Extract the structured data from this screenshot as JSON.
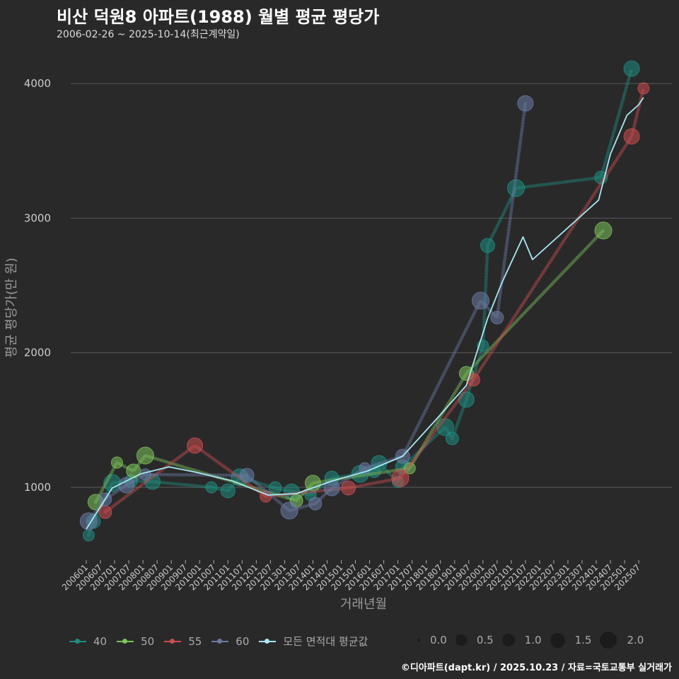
{
  "header": {
    "title": "비산 덕원8 아파트(1988) 월별 평균 평당가",
    "subtitle": "2006-02-26 ~ 2025-10-14(최근계약일)"
  },
  "caption": "©디아파트(dapt.kr) / 2025.10.23 / 자료=국토교통부 실거래가",
  "chart_data": {
    "type": "line",
    "title": "비산 덕원8 아파트(1988) 월별 평균 평당가",
    "xlabel": "거래년월",
    "ylabel": "평균 평당가(만 원)",
    "ylim": [
      450,
      4200
    ],
    "y_ticks": [
      1000,
      2000,
      3000,
      4000
    ],
    "x_ticks": [
      "200601",
      "200607",
      "200701",
      "200707",
      "200801",
      "200807",
      "200901",
      "200907",
      "201001",
      "201007",
      "201101",
      "201107",
      "201201",
      "201207",
      "201301",
      "201307",
      "201401",
      "201407",
      "201501",
      "201507",
      "201601",
      "201607",
      "201701",
      "201707",
      "201801",
      "201807",
      "201901",
      "201907",
      "202001",
      "202007",
      "202101",
      "202107",
      "202201",
      "202207",
      "202301",
      "202307",
      "202401",
      "202407",
      "202501",
      "202507"
    ],
    "grid": true,
    "legend_position": "bottom",
    "series": [
      {
        "name": "40",
        "color": "#1f8d80",
        "points": [
          [
            "2006-02",
            643
          ],
          [
            "2006-04",
            748
          ],
          [
            "2006-12",
            1032
          ],
          [
            "2007-08",
            1047
          ],
          [
            "2008-05",
            1042
          ],
          [
            "2010-06",
            1000
          ],
          [
            "2011-01",
            974
          ],
          [
            "2011-06",
            1074
          ],
          [
            "2012-09",
            995
          ],
          [
            "2013-04",
            968
          ],
          [
            "2013-12",
            942
          ],
          [
            "2014-09",
            1068
          ],
          [
            "2015-09",
            1100
          ],
          [
            "2016-03",
            1120
          ],
          [
            "2016-05",
            1179
          ],
          [
            "2017-01",
            1040
          ],
          [
            "2017-03",
            1152
          ],
          [
            "2018-09",
            1447
          ],
          [
            "2018-12",
            1363
          ],
          [
            "2019-06",
            1652
          ],
          [
            "2020-01",
            2051
          ],
          [
            "2020-03",
            2797
          ],
          [
            "2021-03",
            3223
          ],
          [
            "2024-03",
            3302
          ],
          [
            "2025-04",
            4111
          ]
        ]
      },
      {
        "name": "50",
        "color": "#7cc35a",
        "points": [
          [
            "2006-05",
            890
          ],
          [
            "2007-02",
            1184
          ],
          [
            "2007-09",
            1121
          ],
          [
            "2008-02",
            1236
          ],
          [
            "2013-06",
            900
          ],
          [
            "2014-01",
            1032
          ],
          [
            "2017-06",
            1142
          ],
          [
            "2019-06",
            1846
          ],
          [
            "2024-04",
            2908
          ]
        ]
      },
      {
        "name": "55",
        "color": "#cc4d4f",
        "points": [
          [
            "2006-09",
            816
          ],
          [
            "2009-11",
            1310
          ],
          [
            "2012-05",
            932
          ],
          [
            "2015-04",
            995
          ],
          [
            "2017-02",
            1068
          ],
          [
            "2019-09",
            1799
          ],
          [
            "2025-04",
            3607
          ],
          [
            "2025-09",
            3964
          ]
        ]
      },
      {
        "name": "60",
        "color": "#6a7ba3",
        "points": [
          [
            "2006-02",
            748
          ],
          [
            "2006-09",
            911
          ],
          [
            "2007-06",
            1016
          ],
          [
            "2008-02",
            1095
          ],
          [
            "2011-09",
            1089
          ],
          [
            "2013-03",
            827
          ],
          [
            "2014-02",
            879
          ],
          [
            "2014-09",
            995
          ],
          [
            "2015-11",
            1142
          ],
          [
            "2017-03",
            1231
          ],
          [
            "2019-12",
            2387
          ],
          [
            "2020-07",
            2261
          ],
          [
            "2021-07",
            3853
          ]
        ]
      },
      {
        "name": "모든 면적대 평균값",
        "color": "#a9e8f2",
        "smooth": true,
        "points": [
          [
            "2006-01",
            690
          ],
          [
            "2006-12",
            995
          ],
          [
            "2007-12",
            1100
          ],
          [
            "2008-12",
            1152
          ],
          [
            "2009-12",
            1110
          ],
          [
            "2011-03",
            1047
          ],
          [
            "2012-06",
            942
          ],
          [
            "2013-06",
            953
          ],
          [
            "2014-09",
            1047
          ],
          [
            "2015-12",
            1121
          ],
          [
            "2017-03",
            1231
          ],
          [
            "2018-06",
            1520
          ],
          [
            "2019-06",
            1757
          ],
          [
            "2020-03",
            2256
          ],
          [
            "2020-09",
            2519
          ],
          [
            "2021-06",
            2860
          ],
          [
            "2021-10",
            2692
          ],
          [
            "2024-02",
            3134
          ],
          [
            "2024-07",
            3475
          ],
          [
            "2025-02",
            3764
          ],
          [
            "2025-07",
            3843
          ],
          [
            "2025-09",
            3896
          ]
        ]
      }
    ],
    "size_legend": [
      "0.0",
      "0.5",
      "1.0",
      "1.5",
      "2.0"
    ]
  }
}
